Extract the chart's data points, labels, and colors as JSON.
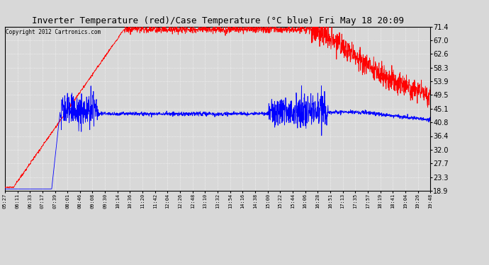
{
  "title": "Inverter Temperature (red)/Case Temperature (°C blue) Fri May 18 20:09",
  "copyright": "Copyright 2012 Cartronics.com",
  "yticks": [
    18.9,
    23.3,
    27.7,
    32.0,
    36.4,
    40.8,
    45.1,
    49.5,
    53.9,
    58.3,
    62.6,
    67.0,
    71.4
  ],
  "ylim": [
    18.9,
    71.4
  ],
  "xtick_labels": [
    "05:27",
    "06:11",
    "06:33",
    "07:17",
    "07:39",
    "08:01",
    "08:46",
    "09:08",
    "09:30",
    "10:14",
    "10:36",
    "11:20",
    "11:42",
    "12:04",
    "12:26",
    "12:48",
    "13:10",
    "13:32",
    "13:54",
    "14:16",
    "14:38",
    "15:00",
    "15:22",
    "15:44",
    "16:06",
    "16:28",
    "16:51",
    "17:13",
    "17:35",
    "17:57",
    "18:19",
    "18:41",
    "19:04",
    "19:26",
    "19:48"
  ],
  "bg_color": "#d8d8d8",
  "red_color": "#ff0000",
  "blue_color": "#0000ff",
  "grid_color": "#ffffff",
  "title_fontsize": 9,
  "copyright_fontsize": 5.5,
  "ytick_fontsize": 7,
  "xtick_fontsize": 5
}
